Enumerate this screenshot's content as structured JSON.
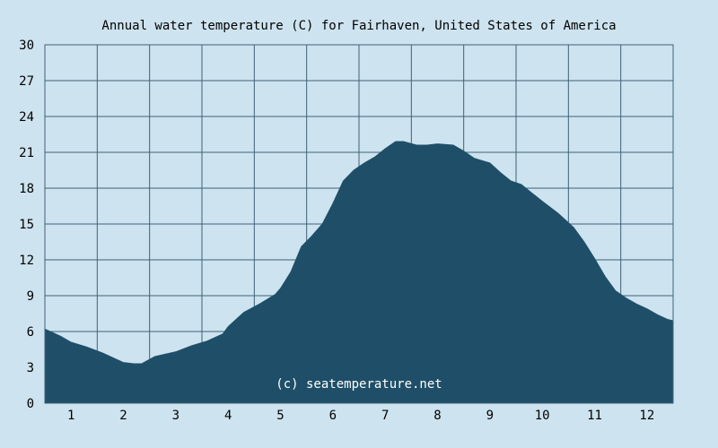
{
  "chart_data": {
    "type": "area",
    "title": "Annual water temperature (C) for Fairhaven, United States of America",
    "xlabel": "",
    "ylabel": "",
    "x_ticks": [
      "1",
      "2",
      "3",
      "4",
      "5",
      "6",
      "7",
      "8",
      "9",
      "10",
      "11",
      "12"
    ],
    "y_ticks": [
      "0",
      "3",
      "6",
      "9",
      "12",
      "15",
      "18",
      "21",
      "24",
      "27",
      "30"
    ],
    "xlim": [
      0.5,
      12.5
    ],
    "ylim": [
      0,
      30
    ],
    "grid": true,
    "annotation": "(c) seatemperature.net",
    "series": [
      {
        "x": [
          0.5,
          0.8,
          1.0,
          1.3,
          1.6,
          1.9,
          2.0,
          2.2,
          2.35,
          2.6,
          2.9,
          3.0,
          3.3,
          3.6,
          3.9,
          4.0,
          4.3,
          4.6,
          4.9,
          5.0,
          5.2,
          5.4,
          5.6,
          5.8,
          6.0,
          6.2,
          6.4,
          6.6,
          6.8,
          7.0,
          7.2,
          7.35,
          7.6,
          7.8,
          8.0,
          8.3,
          8.5,
          8.7,
          9.0,
          9.2,
          9.4,
          9.6,
          9.8,
          10.0,
          10.3,
          10.6,
          10.8,
          11.0,
          11.2,
          11.4,
          11.6,
          11.8,
          12.0,
          12.2,
          12.4,
          12.5
        ],
        "values": [
          6.2,
          5.6,
          5.1,
          4.7,
          4.2,
          3.6,
          3.4,
          3.3,
          3.3,
          3.9,
          4.2,
          4.3,
          4.8,
          5.2,
          5.8,
          6.4,
          7.6,
          8.3,
          9.1,
          9.6,
          11.0,
          13.1,
          14.0,
          15.0,
          16.7,
          18.6,
          19.5,
          20.1,
          20.6,
          21.3,
          21.9,
          21.9,
          21.6,
          21.6,
          21.7,
          21.6,
          21.1,
          20.5,
          20.1,
          19.3,
          18.6,
          18.3,
          17.6,
          16.9,
          15.9,
          14.7,
          13.5,
          12.1,
          10.6,
          9.4,
          8.8,
          8.3,
          7.9,
          7.4,
          7.0,
          6.9
        ],
        "color": "#1f4f68"
      }
    ],
    "colors": {
      "background": "#cde3ef",
      "fill": "#1f4f68",
      "grid": "#3f6277",
      "text": "#000000",
      "watermark": "#ffffff"
    }
  }
}
